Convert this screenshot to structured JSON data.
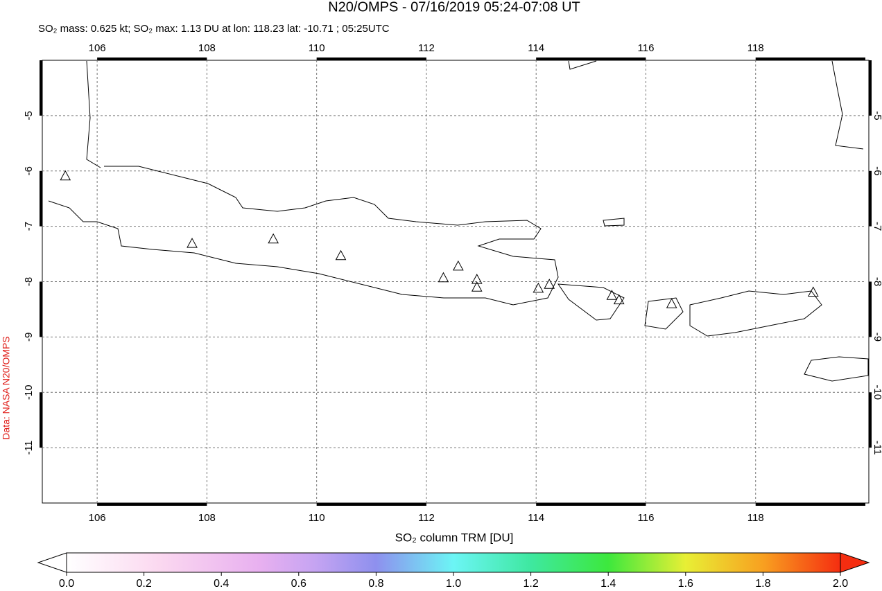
{
  "header": {
    "title": "N20/OMPS - 07/16/2019 05:24-07:08 UT",
    "subtitle": "SO₂ mass: 0.625 kt; SO₂ max: 1.13 DU at lon: 118.23 lat: -10.71 ; 05:25UTC"
  },
  "map": {
    "xlim": [
      105,
      120
    ],
    "ylim": [
      -12,
      -4
    ],
    "xticks": [
      106,
      108,
      110,
      112,
      114,
      116,
      118
    ],
    "yticks": [
      -5,
      -6,
      -7,
      -8,
      -9,
      -10,
      -11
    ],
    "volcanoes": [
      {
        "lon": 105.42,
        "lat": -6.1
      },
      {
        "lon": 107.73,
        "lat": -7.32
      },
      {
        "lon": 109.21,
        "lat": -7.24
      },
      {
        "lon": 110.44,
        "lat": -7.54
      },
      {
        "lon": 112.31,
        "lat": -7.94
      },
      {
        "lon": 112.58,
        "lat": -7.73
      },
      {
        "lon": 112.92,
        "lat": -7.97
      },
      {
        "lon": 112.92,
        "lat": -8.11
      },
      {
        "lon": 114.04,
        "lat": -8.13
      },
      {
        "lon": 114.24,
        "lat": -8.06
      },
      {
        "lon": 115.38,
        "lat": -8.26
      },
      {
        "lon": 115.51,
        "lat": -8.34
      },
      {
        "lon": 116.47,
        "lat": -8.41
      },
      {
        "lon": 119.05,
        "lat": -8.2
      }
    ]
  },
  "colorbar": {
    "label": "SO₂ column TRM [DU]",
    "range": [
      0,
      2
    ],
    "ticks": [
      {
        "value": 0,
        "label": "0.0"
      },
      {
        "value": 0.2,
        "label": "0.2"
      },
      {
        "value": 0.4,
        "label": "0.4"
      },
      {
        "value": 0.6,
        "label": "0.6"
      },
      {
        "value": 0.8,
        "label": "0.8"
      },
      {
        "value": 1,
        "label": "1.0"
      },
      {
        "value": 1.2,
        "label": "1.2"
      },
      {
        "value": 1.4,
        "label": "1.4"
      },
      {
        "value": 1.6,
        "label": "1.6"
      },
      {
        "value": 1.8,
        "label": "1.8"
      },
      {
        "value": 2,
        "label": "2.0"
      }
    ]
  },
  "credit": "Data: NASA N20/OMPS"
}
